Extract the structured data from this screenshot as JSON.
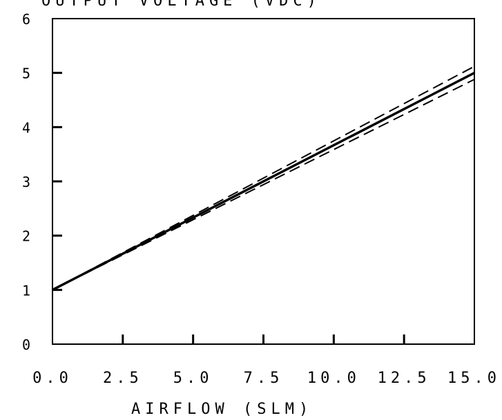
{
  "chart_data": {
    "type": "line",
    "title": "OUTPUT VOLTAGE (VDC)",
    "xlabel": "AIRFLOW (SLM)",
    "ylabel": "",
    "xlim": [
      0,
      15
    ],
    "ylim": [
      0,
      6
    ],
    "x_ticks": [
      "0.0",
      "2.5",
      "5.0",
      "7.5",
      "10.0",
      "12.5",
      "15.0"
    ],
    "y_ticks": [
      "0",
      "1",
      "2",
      "3",
      "4",
      "5",
      "6"
    ],
    "grid": false,
    "legend": "none",
    "series": [
      {
        "style": "solid",
        "x": [
          0,
          15
        ],
        "y": [
          1.0,
          5.0
        ]
      },
      {
        "style": "dashed",
        "x": [
          0,
          15
        ],
        "y": [
          1.0,
          5.12
        ]
      },
      {
        "style": "dashed",
        "x": [
          0,
          15
        ],
        "y": [
          1.0,
          4.88
        ]
      }
    ]
  }
}
